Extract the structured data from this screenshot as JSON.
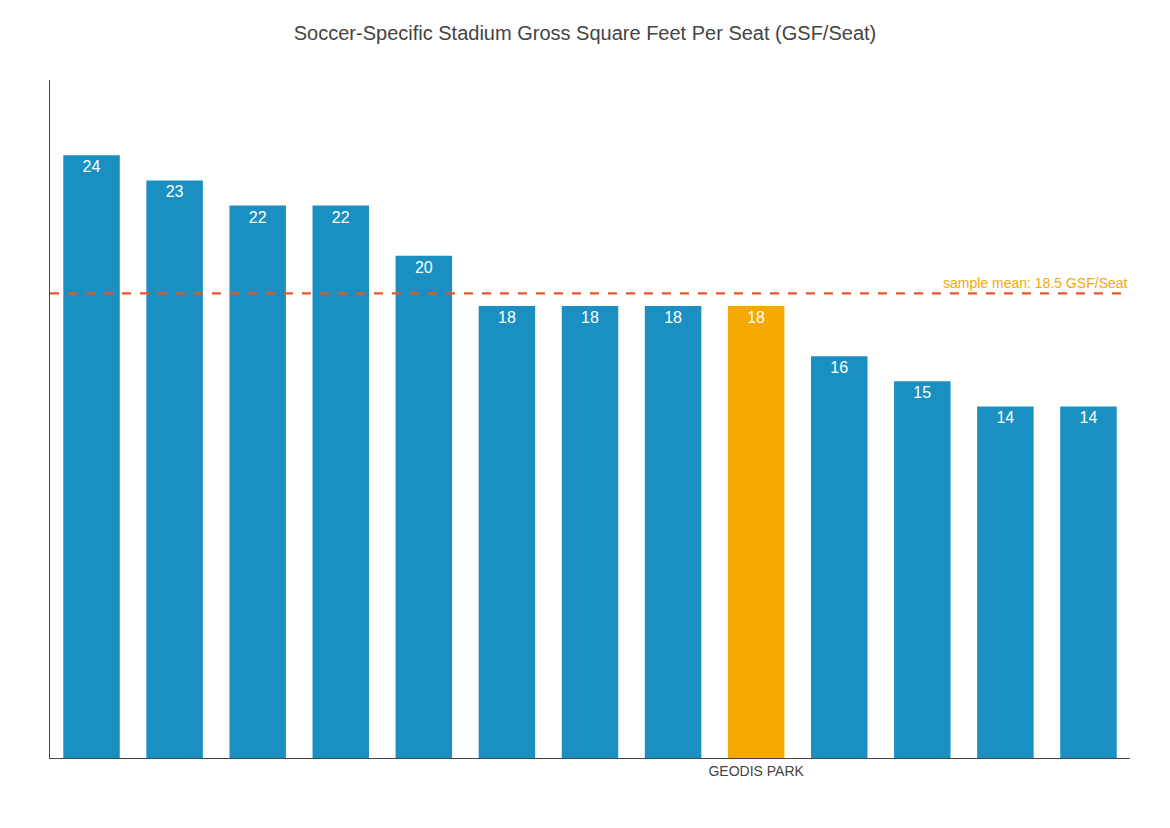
{
  "chart_data": {
    "type": "bar",
    "title": "Soccer-Specific Stadium Gross Square Feet Per Seat (GSF/Seat)",
    "categories": [
      null,
      null,
      null,
      null,
      null,
      null,
      null,
      null,
      "GEODIS PARK",
      null,
      null,
      null,
      null
    ],
    "values": [
      24,
      23,
      22,
      22,
      20,
      18,
      18,
      18,
      18,
      16,
      15,
      14,
      14
    ],
    "colors": [
      "#1a8fc1",
      "#1a8fc1",
      "#1a8fc1",
      "#1a8fc1",
      "#1a8fc1",
      "#1a8fc1",
      "#1a8fc1",
      "#1a8fc1",
      "#f5a800",
      "#1a8fc1",
      "#1a8fc1",
      "#1a8fc1",
      "#1a8fc1"
    ],
    "data_labels": true,
    "ylim": [
      0,
      27
    ],
    "grid": false,
    "tick_labels": "x",
    "mean_line": {
      "value": 18.5,
      "label": "sample mean: 18.5 GSF/Seat",
      "color": "#e05a2b",
      "text_color": "#f5a800"
    }
  }
}
